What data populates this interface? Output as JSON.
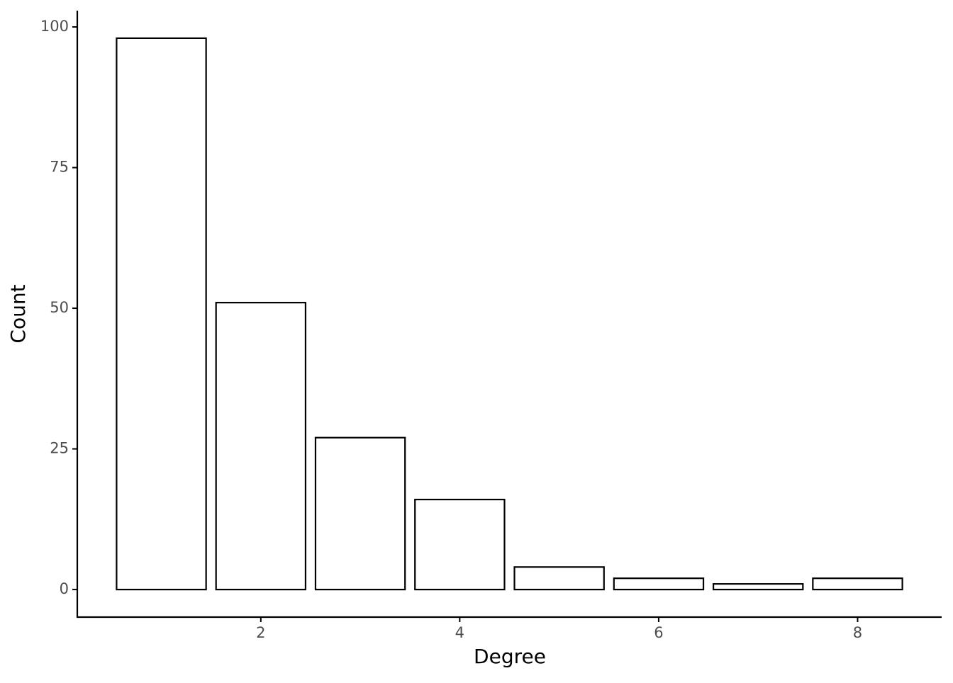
{
  "chart_data": {
    "type": "bar",
    "x_label": "Degree",
    "y_label": "Count",
    "x": [
      1,
      2,
      3,
      4,
      5,
      6,
      7,
      8
    ],
    "values": [
      98,
      51,
      27,
      16,
      4,
      2,
      1,
      2
    ],
    "color": "#ffffff",
    "edgecolor": "#000000",
    "xlim": [
      0.155,
      8.845
    ],
    "xticks": [
      2,
      4,
      6,
      8
    ],
    "ylim": [
      -4.9,
      102.9
    ],
    "yticks": [
      0,
      25,
      50,
      75,
      100
    ],
    "grid": false
  }
}
